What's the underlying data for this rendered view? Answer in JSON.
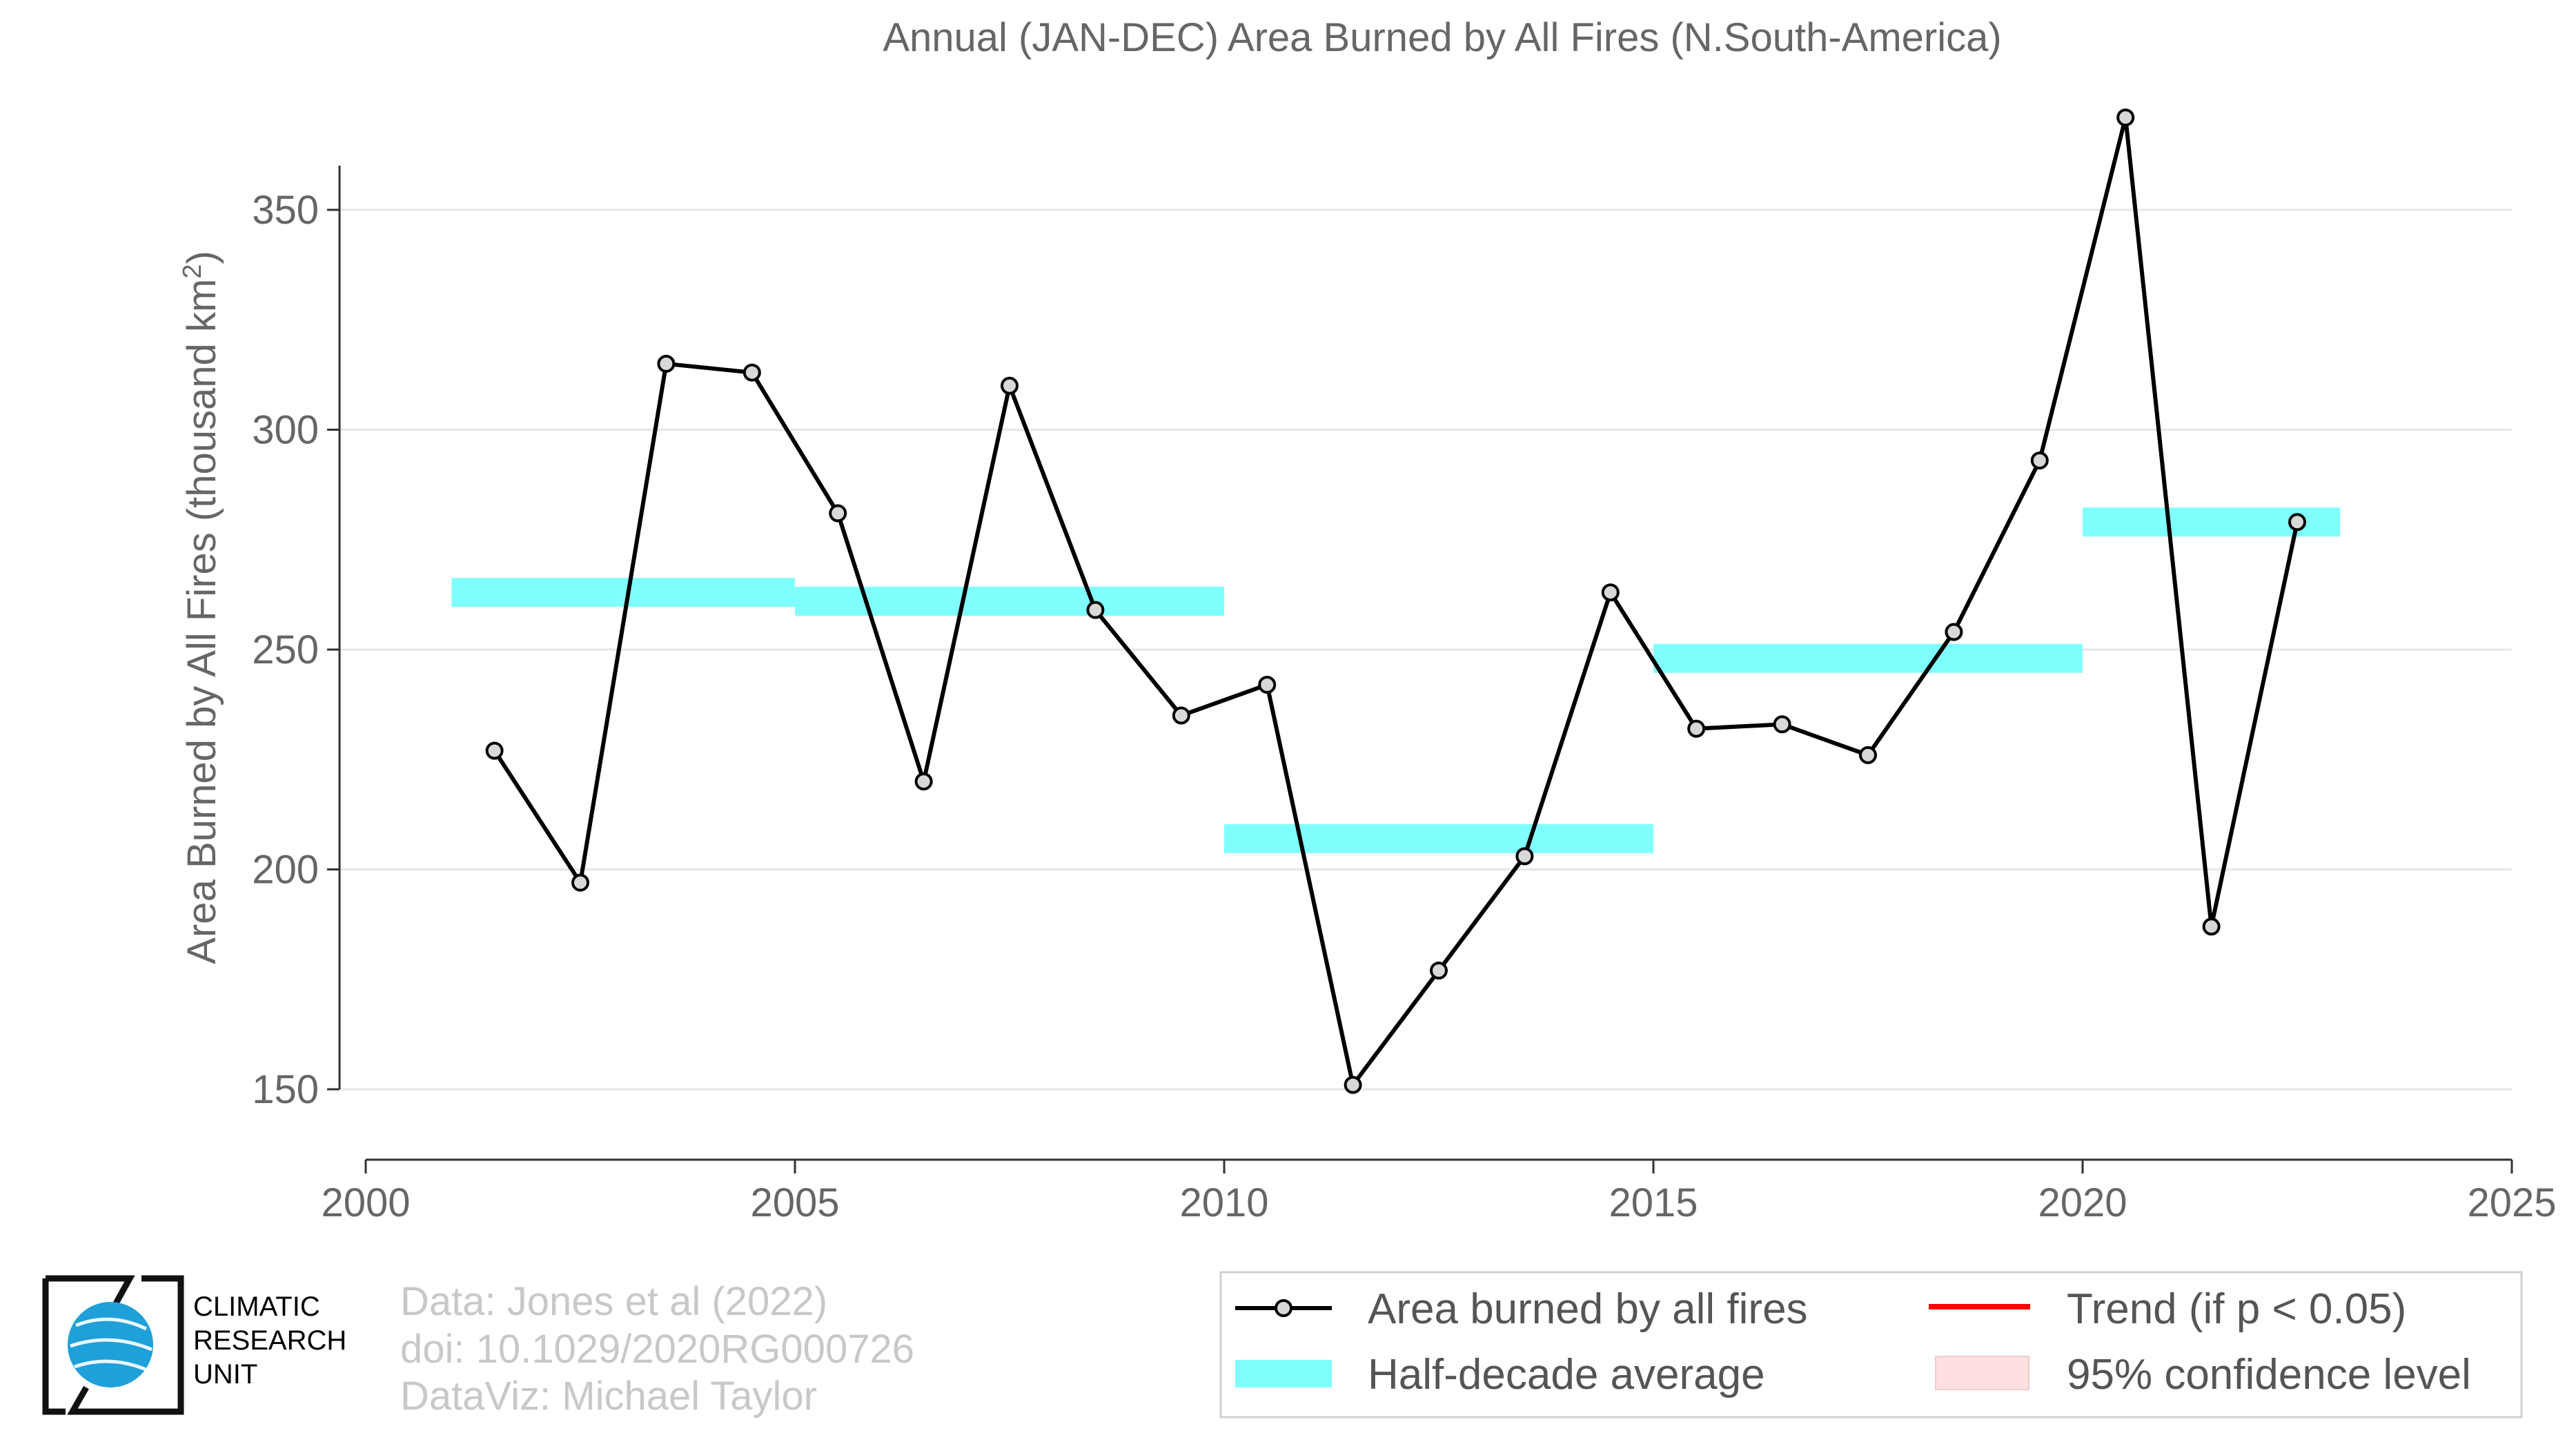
{
  "chart_data": {
    "type": "line",
    "title": "Annual (JAN-DEC) Area Burned by All Fires (N.South-America)",
    "ylabel_prefix": "Area Burned by All Fires (thousand km",
    "ylabel_sup": "2",
    "ylabel_suffix": ")",
    "xlim": [
      2000,
      2025
    ],
    "ylim": [
      150,
      370
    ],
    "x_ticks": [
      2000,
      2005,
      2010,
      2015,
      2020,
      2025
    ],
    "y_ticks": [
      150,
      200,
      250,
      300,
      350
    ],
    "grid": "horizontal",
    "series": [
      {
        "name": "Area burned by all fires",
        "x": [
          2001.5,
          2002.5,
          2003.5,
          2004.5,
          2005.5,
          2006.5,
          2007.5,
          2008.5,
          2009.5,
          2010.5,
          2011.5,
          2012.5,
          2013.5,
          2014.5,
          2015.5,
          2016.5,
          2017.5,
          2018.5,
          2019.5,
          2020.5,
          2021.5,
          2022.5
        ],
        "values": [
          227,
          197,
          315,
          313,
          281,
          220,
          310,
          259,
          235,
          242,
          151,
          177,
          203,
          263,
          232,
          233,
          226,
          254,
          293,
          371,
          187,
          279
        ],
        "color": "#000000"
      }
    ],
    "half_decade_average": {
      "name": "Half-decade average",
      "color": "#80ffff",
      "segments": [
        {
          "x_start": 2001,
          "x_end": 2005,
          "value": 263
        },
        {
          "x_start": 2005,
          "x_end": 2010,
          "value": 261
        },
        {
          "x_start": 2010,
          "x_end": 2015,
          "value": 207
        },
        {
          "x_start": 2015,
          "x_end": 2020,
          "value": 248
        },
        {
          "x_start": 2020,
          "x_end": 2023,
          "value": 279
        }
      ]
    },
    "legend": {
      "placement": "bottom-right",
      "entries": [
        {
          "label": "Area burned by all fires",
          "kind": "line-marker",
          "color": "#000000"
        },
        {
          "label": "Trend (if p < 0.05)",
          "kind": "line",
          "color": "#ff0000"
        },
        {
          "label": "Half-decade average",
          "kind": "band",
          "color": "#80ffff"
        },
        {
          "label": "95% confidence level",
          "kind": "band",
          "color": "#ffe0e0"
        }
      ]
    }
  },
  "credits": {
    "line1": "Data: Jones et al (2022)",
    "line2": "doi: 10.1029/2020RG000726",
    "line3": "DataViz: Michael Taylor"
  },
  "logo": {
    "line1": "CLIMATIC",
    "line2": "RESEARCH",
    "line3": "UNIT",
    "globe_color": "#1fa0d8"
  }
}
